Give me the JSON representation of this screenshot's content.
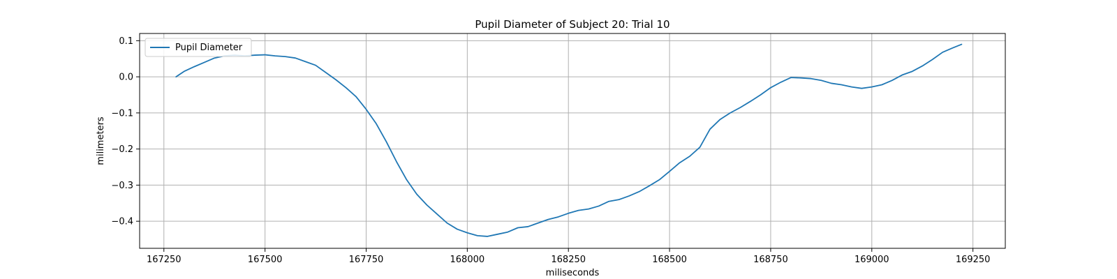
{
  "chart_data": {
    "type": "line",
    "title": "Pupil Diameter of Subject 20: Trial 10",
    "xlabel": "miliseconds",
    "ylabel": "milimeters",
    "xlim": [
      167190,
      169330
    ],
    "ylim": [
      -0.475,
      0.12
    ],
    "xticks": [
      167250,
      167500,
      167750,
      168000,
      168250,
      168500,
      168750,
      169000,
      169250
    ],
    "yticks": [
      -0.4,
      -0.3,
      -0.2,
      -0.1,
      0.0,
      0.1
    ],
    "xtick_labels": [
      "167250",
      "167500",
      "167750",
      "168000",
      "168250",
      "168500",
      "168750",
      "169000",
      "169250"
    ],
    "ytick_labels": [
      "−0.4",
      "−0.3",
      "−0.2",
      "−0.1",
      "0.0",
      "0.1"
    ],
    "grid": true,
    "legend_position": "top-left",
    "series": [
      {
        "name": "Pupil Diameter",
        "color": "#1f77b4",
        "x": [
          167280,
          167300,
          167325,
          167350,
          167375,
          167400,
          167425,
          167450,
          167475,
          167500,
          167525,
          167550,
          167575,
          167600,
          167625,
          167650,
          167675,
          167700,
          167725,
          167750,
          167775,
          167800,
          167825,
          167850,
          167875,
          167900,
          167925,
          167950,
          167975,
          168000,
          168025,
          168050,
          168075,
          168100,
          168125,
          168150,
          168175,
          168200,
          168225,
          168250,
          168275,
          168300,
          168325,
          168350,
          168375,
          168400,
          168425,
          168450,
          168475,
          168500,
          168525,
          168550,
          168575,
          168600,
          168625,
          168650,
          168675,
          168700,
          168725,
          168750,
          168775,
          168800,
          168825,
          168850,
          168875,
          168900,
          168925,
          168950,
          168975,
          169000,
          169025,
          169050,
          169075,
          169100,
          169125,
          169150,
          169175,
          169200,
          169222
        ],
        "values": [
          0.0,
          0.015,
          0.028,
          0.04,
          0.052,
          0.058,
          0.06,
          0.058,
          0.06,
          0.061,
          0.058,
          0.056,
          0.052,
          0.042,
          0.032,
          0.012,
          -0.008,
          -0.03,
          -0.055,
          -0.09,
          -0.13,
          -0.18,
          -0.235,
          -0.285,
          -0.325,
          -0.355,
          -0.38,
          -0.405,
          -0.422,
          -0.432,
          -0.44,
          -0.442,
          -0.436,
          -0.43,
          -0.418,
          -0.415,
          -0.405,
          -0.395,
          -0.388,
          -0.378,
          -0.37,
          -0.366,
          -0.358,
          -0.345,
          -0.34,
          -0.33,
          -0.318,
          -0.302,
          -0.285,
          -0.262,
          -0.238,
          -0.22,
          -0.195,
          -0.145,
          -0.118,
          -0.1,
          -0.085,
          -0.068,
          -0.05,
          -0.03,
          -0.015,
          -0.002,
          -0.003,
          -0.005,
          -0.01,
          -0.018,
          -0.022,
          -0.028,
          -0.032,
          -0.028,
          -0.022,
          -0.01,
          0.005,
          0.015,
          0.03,
          0.048,
          0.068,
          0.08,
          0.09
        ]
      }
    ]
  }
}
